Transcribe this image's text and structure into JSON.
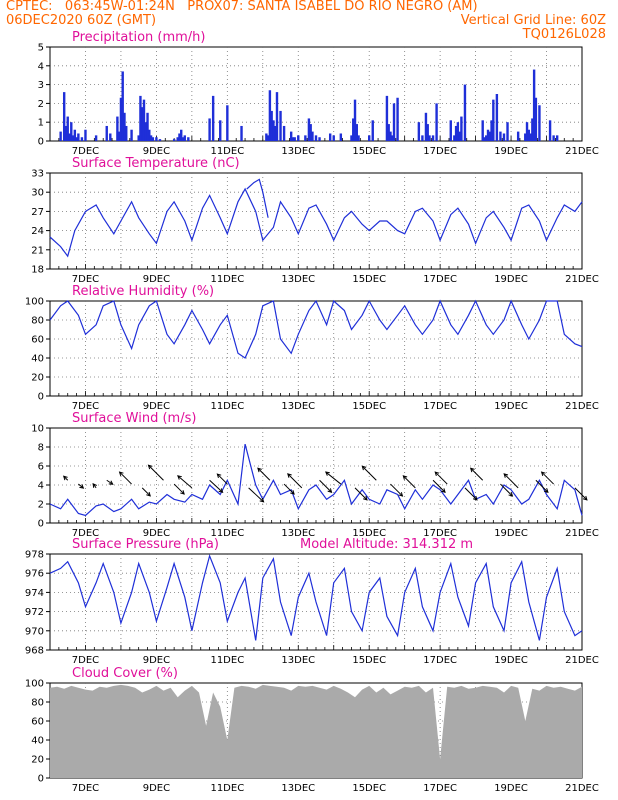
{
  "header": {
    "line1_left": "CPTEC:   063:45W-01:24N   PROX07: SANTA ISABEL DO RIO NEGRO (AM)",
    "line2_left": "06DEC2020 60Z (GMT)",
    "line2_right": "Vertical Grid Line: 60Z",
    "line3_right": "TQ0126L028"
  },
  "colors": {
    "header": "#ff6600",
    "panel_title": "#e0109a",
    "series": "#1f2fd8",
    "cloud_fill": "#aaaaaa",
    "wind_arrow": "#000000"
  },
  "chart_data": [
    {
      "type": "bar",
      "title": "Precipitation (mm/h)",
      "ylim": [
        0,
        5
      ],
      "yticks": [
        "0",
        "1",
        "2",
        "3",
        "4",
        "5"
      ],
      "xticks": [
        "7DEC",
        "9DEC",
        "11DEC",
        "13DEC",
        "15DEC",
        "17DEC",
        "19DEC",
        "21DEC"
      ],
      "grid": true,
      "x": [
        6.3,
        6.4,
        6.45,
        6.5,
        6.55,
        6.6,
        6.65,
        6.7,
        6.75,
        6.8,
        6.9,
        7.0,
        7.3,
        7.6,
        7.7,
        7.9,
        7.95,
        8.0,
        8.05,
        8.1,
        8.15,
        8.3,
        8.5,
        8.55,
        8.6,
        8.65,
        8.7,
        8.75,
        8.8,
        8.85,
        8.9,
        9.0,
        9.1,
        9.5,
        9.6,
        9.65,
        9.7,
        9.75,
        9.8,
        9.9,
        10.5,
        10.6,
        10.8,
        11.0,
        11.4,
        12.1,
        12.15,
        12.2,
        12.25,
        12.3,
        12.35,
        12.4,
        12.5,
        12.6,
        12.8,
        12.85,
        12.9,
        13.0,
        13.2,
        13.3,
        13.35,
        13.4,
        13.5,
        13.6,
        13.9,
        14.0,
        14.2,
        14.5,
        14.55,
        14.6,
        14.65,
        14.7,
        15.0,
        15.1,
        15.5,
        15.55,
        15.6,
        15.65,
        15.7,
        15.8,
        16.4,
        16.5,
        16.6,
        16.65,
        16.7,
        16.8,
        16.9,
        17.3,
        17.4,
        17.45,
        17.5,
        17.55,
        17.6,
        17.7,
        18.2,
        18.25,
        18.3,
        18.35,
        18.4,
        18.45,
        18.5,
        18.6,
        18.7,
        18.8,
        18.9,
        19.2,
        19.4,
        19.45,
        19.5,
        19.55,
        19.6,
        19.65,
        19.7,
        19.8,
        20.1,
        20.2,
        20.3
      ],
      "values": [
        0.5,
        2.6,
        0.8,
        1.3,
        0.4,
        1.0,
        0.3,
        0.6,
        0.2,
        0.4,
        0.2,
        0.6,
        0.3,
        0.8,
        0.4,
        1.3,
        0.5,
        2.3,
        3.7,
        1.5,
        0.8,
        0.6,
        0.3,
        2.4,
        1.8,
        2.2,
        1.0,
        1.5,
        0.6,
        0.3,
        0.2,
        0.2,
        0.1,
        0.1,
        0.2,
        0.4,
        0.6,
        0.2,
        0.3,
        0.2,
        1.2,
        2.4,
        1.1,
        1.9,
        0.8,
        0.4,
        0.3,
        2.7,
        1.6,
        1.1,
        0.8,
        2.6,
        1.6,
        0.8,
        0.5,
        0.2,
        0.2,
        0.3,
        0.3,
        1.2,
        0.9,
        0.5,
        0.3,
        0.2,
        0.4,
        0.3,
        0.4,
        0.3,
        1.2,
        2.2,
        0.9,
        0.3,
        0.3,
        1.1,
        2.4,
        0.9,
        0.5,
        0.3,
        2.0,
        2.3,
        1.0,
        0.3,
        1.5,
        0.9,
        0.3,
        0.3,
        2.0,
        1.1,
        0.3,
        0.8,
        1.0,
        0.5,
        1.3,
        3.0,
        1.1,
        0.2,
        0.3,
        0.6,
        0.5,
        1.1,
        2.2,
        2.5,
        0.5,
        0.4,
        1.0,
        0.5,
        0.4,
        1.0,
        0.6,
        0.4,
        1.2,
        3.8,
        2.3,
        1.9,
        1.1,
        0.3,
        0.3
      ]
    },
    {
      "type": "line",
      "title": "Surface Temperature (nC)",
      "ylim": [
        18,
        33
      ],
      "yticks": [
        "18",
        "21",
        "24",
        "27",
        "30",
        "33"
      ],
      "xticks": [
        "7DEC",
        "9DEC",
        "11DEC",
        "13DEC",
        "15DEC",
        "17DEC",
        "19DEC",
        "21DEC"
      ],
      "grid": true,
      "x": [
        6.0,
        6.3,
        6.5,
        6.7,
        7.0,
        7.3,
        7.5,
        7.8,
        8.0,
        8.3,
        8.5,
        8.8,
        9.0,
        9.3,
        9.5,
        9.8,
        10.0,
        10.3,
        10.5,
        10.8,
        11.0,
        11.3,
        11.5,
        11.8,
        12.0,
        12.3,
        12.5,
        12.8,
        13.0,
        13.3,
        13.5,
        13.8,
        14.0,
        14.3,
        14.5,
        14.8,
        15.0,
        15.3,
        15.5,
        15.8,
        16.0,
        16.3,
        16.5,
        16.8,
        17.0,
        17.3,
        17.5,
        17.8,
        18.0,
        18.3,
        18.5,
        18.8,
        19.0,
        19.3,
        19.5,
        19.8,
        20.0,
        20.3,
        20.5,
        20.8,
        21.0
      ],
      "values": [
        23.0,
        21.5,
        20.0,
        24.0,
        27.0,
        28.0,
        26.0,
        23.5,
        25.5,
        28.5,
        26.0,
        23.5,
        22.0,
        27.0,
        28.5,
        25.5,
        22.5,
        27.5,
        29.5,
        26.0,
        23.5,
        28.5,
        30.5,
        27.0,
        22.5,
        24.5,
        28.5,
        26.0,
        23.5,
        27.5,
        28.0,
        25.0,
        22.5,
        26.0,
        27.0,
        25.0,
        24.0,
        25.5,
        25.5,
        24.0,
        23.5,
        27.0,
        27.5,
        25.5,
        22.5,
        26.5,
        27.5,
        25.0,
        22.0,
        26.0,
        27.0,
        24.5,
        22.5,
        27.5,
        28.0,
        25.5,
        22.5,
        26.0,
        28.0,
        27.0,
        28.5
      ],
      "extra": {
        "x": [
          11.55,
          11.75,
          11.9,
          12.0,
          12.15
        ],
        "values": [
          30.5,
          31.5,
          32.0,
          30.0,
          26.0
        ]
      }
    },
    {
      "type": "line",
      "title": "Relative Humidity (%)",
      "ylim": [
        0,
        100
      ],
      "yticks": [
        "0",
        "20",
        "40",
        "60",
        "80",
        "100"
      ],
      "xticks": [
        "7DEC",
        "9DEC",
        "11DEC",
        "13DEC",
        "15DEC",
        "17DEC",
        "19DEC",
        "21DEC"
      ],
      "grid": true,
      "x": [
        6.0,
        6.3,
        6.5,
        6.8,
        7.0,
        7.3,
        7.5,
        7.8,
        8.0,
        8.3,
        8.5,
        8.8,
        9.0,
        9.3,
        9.5,
        9.8,
        10.0,
        10.3,
        10.5,
        10.8,
        11.0,
        11.3,
        11.5,
        11.8,
        12.0,
        12.3,
        12.5,
        12.8,
        13.0,
        13.3,
        13.5,
        13.8,
        14.0,
        14.3,
        14.5,
        14.8,
        15.0,
        15.3,
        15.5,
        15.8,
        16.0,
        16.3,
        16.5,
        16.8,
        17.0,
        17.3,
        17.5,
        17.8,
        18.0,
        18.3,
        18.5,
        18.8,
        19.0,
        19.3,
        19.5,
        19.8,
        20.0,
        20.3,
        20.5,
        20.8,
        21.0
      ],
      "values": [
        80,
        95,
        100,
        85,
        65,
        75,
        95,
        100,
        75,
        50,
        75,
        95,
        100,
        65,
        55,
        75,
        90,
        70,
        55,
        75,
        85,
        45,
        40,
        65,
        95,
        100,
        60,
        45,
        65,
        90,
        100,
        75,
        100,
        90,
        70,
        85,
        100,
        80,
        70,
        85,
        95,
        75,
        65,
        80,
        100,
        75,
        65,
        85,
        100,
        75,
        65,
        80,
        100,
        75,
        60,
        80,
        100,
        100,
        65,
        55,
        52
      ]
    },
    {
      "type": "line",
      "title": "Surface Wind (m/s)",
      "ylim": [
        0,
        10
      ],
      "yticks": [
        "0",
        "2",
        "4",
        "6",
        "8",
        "10"
      ],
      "xticks": [
        "7DEC",
        "9DEC",
        "11DEC",
        "13DEC",
        "15DEC",
        "17DEC",
        "19DEC",
        "21DEC"
      ],
      "grid": true,
      "x": [
        6.0,
        6.3,
        6.5,
        6.8,
        7.0,
        7.3,
        7.5,
        7.8,
        8.0,
        8.3,
        8.5,
        8.8,
        9.0,
        9.3,
        9.5,
        9.8,
        10.0,
        10.3,
        10.5,
        10.8,
        11.0,
        11.3,
        11.5,
        11.8,
        12.0,
        12.3,
        12.5,
        12.8,
        13.0,
        13.3,
        13.5,
        13.8,
        14.0,
        14.3,
        14.5,
        14.8,
        15.0,
        15.3,
        15.5,
        15.8,
        16.0,
        16.3,
        16.5,
        16.8,
        17.0,
        17.3,
        17.5,
        17.8,
        18.0,
        18.3,
        18.5,
        18.8,
        19.0,
        19.3,
        19.5,
        19.8,
        20.0,
        20.3,
        20.5,
        20.8,
        21.0
      ],
      "values": [
        2.0,
        1.5,
        2.5,
        1.0,
        0.8,
        1.8,
        2.0,
        1.2,
        1.5,
        2.5,
        1.5,
        2.2,
        2.0,
        3.0,
        2.5,
        2.2,
        3.0,
        2.5,
        4.0,
        3.0,
        4.5,
        2.0,
        8.3,
        4.0,
        2.5,
        4.5,
        3.0,
        3.5,
        1.5,
        3.5,
        4.0,
        2.5,
        3.0,
        4.5,
        2.0,
        3.5,
        2.5,
        2.0,
        3.5,
        3.0,
        1.5,
        3.5,
        2.5,
        4.0,
        3.5,
        2.0,
        3.0,
        4.5,
        2.5,
        3.0,
        2.0,
        4.0,
        3.5,
        2.0,
        2.5,
        4.5,
        3.0,
        1.5,
        4.5,
        3.5,
        0.8
      ],
      "arrows": {
        "x": [
          6.5,
          6.8,
          7.3,
          7.6,
          8.3,
          8.6,
          9.2,
          9.5,
          10.0,
          10.5,
          11.0,
          11.6,
          12.2,
          12.6,
          13.1,
          13.6,
          14.2,
          14.6,
          15.2,
          15.6,
          16.3,
          16.8,
          17.2,
          17.7,
          18.2,
          18.7,
          19.2,
          19.7,
          20.2,
          20.8
        ],
        "dx": [
          -4,
          5,
          -3,
          6,
          -12,
          8,
          -15,
          10,
          -14,
          13,
          -10,
          15,
          -12,
          10,
          -14,
          12,
          -15,
          12,
          -14,
          12,
          -12,
          12,
          -12,
          12,
          -12,
          12,
          -14,
          12,
          -12,
          12
        ],
        "dy": [
          -4,
          4,
          -4,
          4,
          -12,
          8,
          -15,
          10,
          -12,
          12,
          -10,
          14,
          -12,
          10,
          -14,
          12,
          -12,
          12,
          -14,
          12,
          -12,
          12,
          -12,
          12,
          -12,
          12,
          -14,
          12,
          -12,
          12
        ]
      }
    },
    {
      "type": "line",
      "title": "Surface Pressure (hPa)",
      "annotation": "Model Altitude: 314.312 m",
      "ylim": [
        968,
        978
      ],
      "yticks": [
        "968",
        "970",
        "972",
        "974",
        "976",
        "978"
      ],
      "xticks": [
        "7DEC",
        "9DEC",
        "11DEC",
        "13DEC",
        "15DEC",
        "17DEC",
        "19DEC",
        "21DEC"
      ],
      "grid": true,
      "x": [
        6.0,
        6.3,
        6.5,
        6.8,
        7.0,
        7.3,
        7.5,
        7.8,
        8.0,
        8.3,
        8.5,
        8.8,
        9.0,
        9.3,
        9.5,
        9.8,
        10.0,
        10.3,
        10.5,
        10.8,
        11.0,
        11.3,
        11.5,
        11.8,
        12.0,
        12.3,
        12.5,
        12.8,
        13.0,
        13.3,
        13.5,
        13.8,
        14.0,
        14.3,
        14.5,
        14.8,
        15.0,
        15.3,
        15.5,
        15.8,
        16.0,
        16.3,
        16.5,
        16.8,
        17.0,
        17.3,
        17.5,
        17.8,
        18.0,
        18.3,
        18.5,
        18.8,
        19.0,
        19.3,
        19.5,
        19.8,
        20.0,
        20.3,
        20.5,
        20.8,
        21.0
      ],
      "values": [
        976,
        976.5,
        977.2,
        975,
        972.5,
        975,
        977,
        974,
        970.8,
        974,
        977,
        974,
        971,
        974.5,
        977,
        973.5,
        970,
        975,
        977.8,
        975,
        971,
        974,
        975.5,
        969,
        975.5,
        977.5,
        973,
        969.5,
        973.5,
        976,
        973,
        969.5,
        975,
        976.5,
        972,
        970,
        974,
        975.5,
        971.5,
        969.5,
        974,
        976.5,
        972.5,
        970,
        974,
        977,
        973.5,
        970.5,
        975,
        977,
        972.5,
        970,
        975,
        977.2,
        973,
        969,
        973.5,
        976.5,
        972,
        969.5,
        970
      ]
    },
    {
      "type": "area",
      "title": "Cloud Cover (%)",
      "ylim": [
        0,
        100
      ],
      "yticks": [
        "0",
        "20",
        "40",
        "60",
        "80",
        "100"
      ],
      "xticks": [
        "7DEC",
        "9DEC",
        "11DEC",
        "13DEC",
        "15DEC",
        "17DEC",
        "19DEC",
        "21DEC"
      ],
      "grid": true,
      "x": [
        6.0,
        6.2,
        6.4,
        6.6,
        6.8,
        7.0,
        7.2,
        7.4,
        7.6,
        7.8,
        8.0,
        8.2,
        8.4,
        8.6,
        8.8,
        9.0,
        9.2,
        9.4,
        9.6,
        9.8,
        10.0,
        10.2,
        10.4,
        10.6,
        10.8,
        11.0,
        11.2,
        11.4,
        11.6,
        11.8,
        12.0,
        12.2,
        12.4,
        12.6,
        12.8,
        13.0,
        13.2,
        13.4,
        13.6,
        13.8,
        14.0,
        14.2,
        14.4,
        14.6,
        14.8,
        15.0,
        15.2,
        15.4,
        15.6,
        15.8,
        16.0,
        16.2,
        16.4,
        16.6,
        16.8,
        17.0,
        17.2,
        17.4,
        17.6,
        17.8,
        18.0,
        18.2,
        18.4,
        18.6,
        18.8,
        19.0,
        19.2,
        19.4,
        19.6,
        19.8,
        20.0,
        20.2,
        20.4,
        20.6,
        20.8,
        21.0
      ],
      "values": [
        95,
        96,
        94,
        97,
        95,
        93,
        92,
        96,
        95,
        97,
        98,
        97,
        95,
        90,
        93,
        97,
        92,
        95,
        85,
        92,
        97,
        90,
        55,
        90,
        75,
        40,
        95,
        97,
        96,
        94,
        98,
        97,
        96,
        95,
        92,
        97,
        96,
        97,
        95,
        93,
        97,
        94,
        90,
        85,
        93,
        97,
        90,
        95,
        88,
        92,
        96,
        95,
        97,
        90,
        95,
        20,
        96,
        95,
        97,
        94,
        95,
        97,
        96,
        95,
        90,
        97,
        95,
        60,
        94,
        92,
        97,
        95,
        96,
        94,
        92,
        96
      ]
    }
  ]
}
